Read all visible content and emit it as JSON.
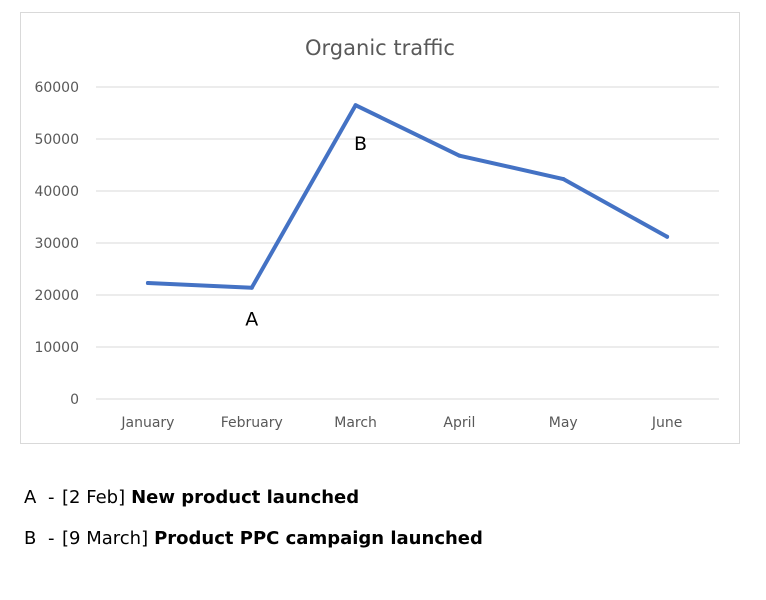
{
  "chart_data": {
    "type": "line",
    "title": "Organic traffic",
    "categories": [
      "January",
      "February",
      "March",
      "April",
      "May",
      "June"
    ],
    "series": [
      {
        "values": [
          22300,
          21400,
          56500,
          46800,
          42300,
          31200
        ]
      }
    ],
    "ylim": [
      0,
      60000
    ],
    "yticks": [
      0,
      10000,
      20000,
      30000,
      40000,
      50000,
      60000
    ],
    "ytick_labels": [
      "0",
      "10000",
      "20000",
      "30000",
      "40000",
      "50000",
      "60000"
    ],
    "grid": true,
    "legend": "none",
    "line_color": "#4472c4",
    "annotations": [
      {
        "label": "A",
        "category": "February",
        "placement": "below"
      },
      {
        "label": "B",
        "category": "March",
        "placement": "below"
      }
    ]
  },
  "notes": [
    {
      "letter": "A",
      "dash": "-",
      "date": "[2 Feb]",
      "desc": "New product launched"
    },
    {
      "letter": "B",
      "dash": "-",
      "date": "[9 March]",
      "desc": "Product PPC campaign launched"
    }
  ]
}
